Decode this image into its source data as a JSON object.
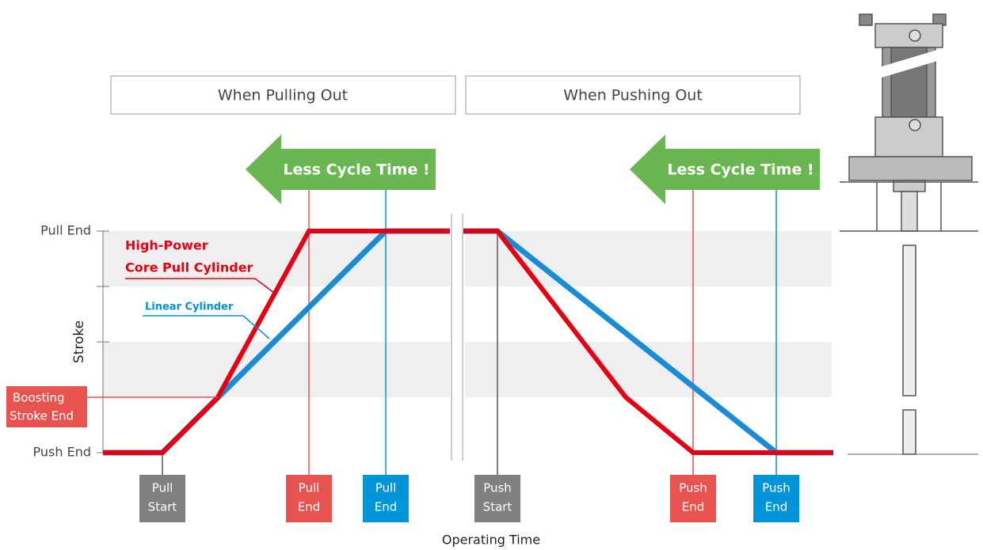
{
  "headers": [
    "When Pulling Out",
    "When Pushing Out"
  ],
  "banners": [
    "Less Cycle Time !",
    "Less Cycle Time !"
  ],
  "y_axis": {
    "label": "Stroke",
    "top": "Pull End",
    "bottom": "Push End"
  },
  "x_axis": {
    "label": "Operating Time"
  },
  "callouts": {
    "high_power": [
      "High-Power",
      "Core Pull Cylinder"
    ],
    "linear": "Linear Cylinder",
    "boosting": [
      "Boosting",
      "Stroke End"
    ]
  },
  "markers": [
    [
      "Pull",
      "Start"
    ],
    [
      "Pull",
      "End"
    ],
    [
      "Pull",
      "End"
    ],
    [
      "Push",
      "Start"
    ],
    [
      "Push",
      "End"
    ],
    [
      "Push",
      "End"
    ]
  ]
}
